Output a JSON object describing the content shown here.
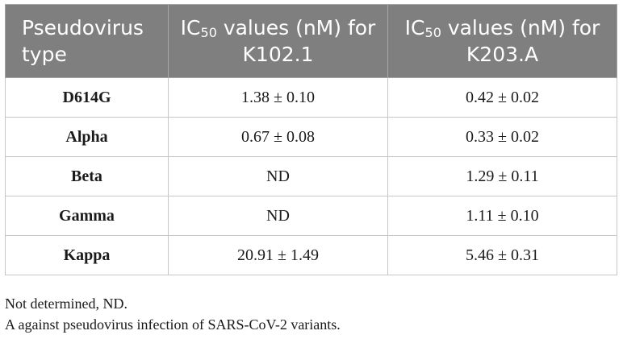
{
  "table": {
    "headers": [
      {
        "main": "Pseudovirus type",
        "sub": "",
        "rest": ""
      },
      {
        "main": "IC",
        "sub": "50",
        "rest": " values (nM) for K102.1"
      },
      {
        "main": "IC",
        "sub": "50",
        "rest": " values (nM) for K203.A"
      }
    ],
    "rows": [
      {
        "type": "D614G",
        "k102": "1.38 ± 0.10",
        "k203": "0.42 ± 0.02"
      },
      {
        "type": "Alpha",
        "k102": "0.67 ± 0.08",
        "k203": "0.33 ± 0.02"
      },
      {
        "type": "Beta",
        "k102": "ND",
        "k203": "1.29 ± 0.11"
      },
      {
        "type": "Gamma",
        "k102": "ND",
        "k203": "1.11 ± 0.10"
      },
      {
        "type": "Kappa",
        "k102": "20.91 ± 1.49",
        "k203": "5.46 ± 0.31"
      }
    ]
  },
  "notes": {
    "line1": "Not determined, ND.",
    "line2": "A against pseudovirus infection of SARS-CoV-2 variants."
  },
  "colors": {
    "header_bg": "#7f7f7f",
    "header_text": "#ffffff",
    "border": "#c7c7c7"
  }
}
